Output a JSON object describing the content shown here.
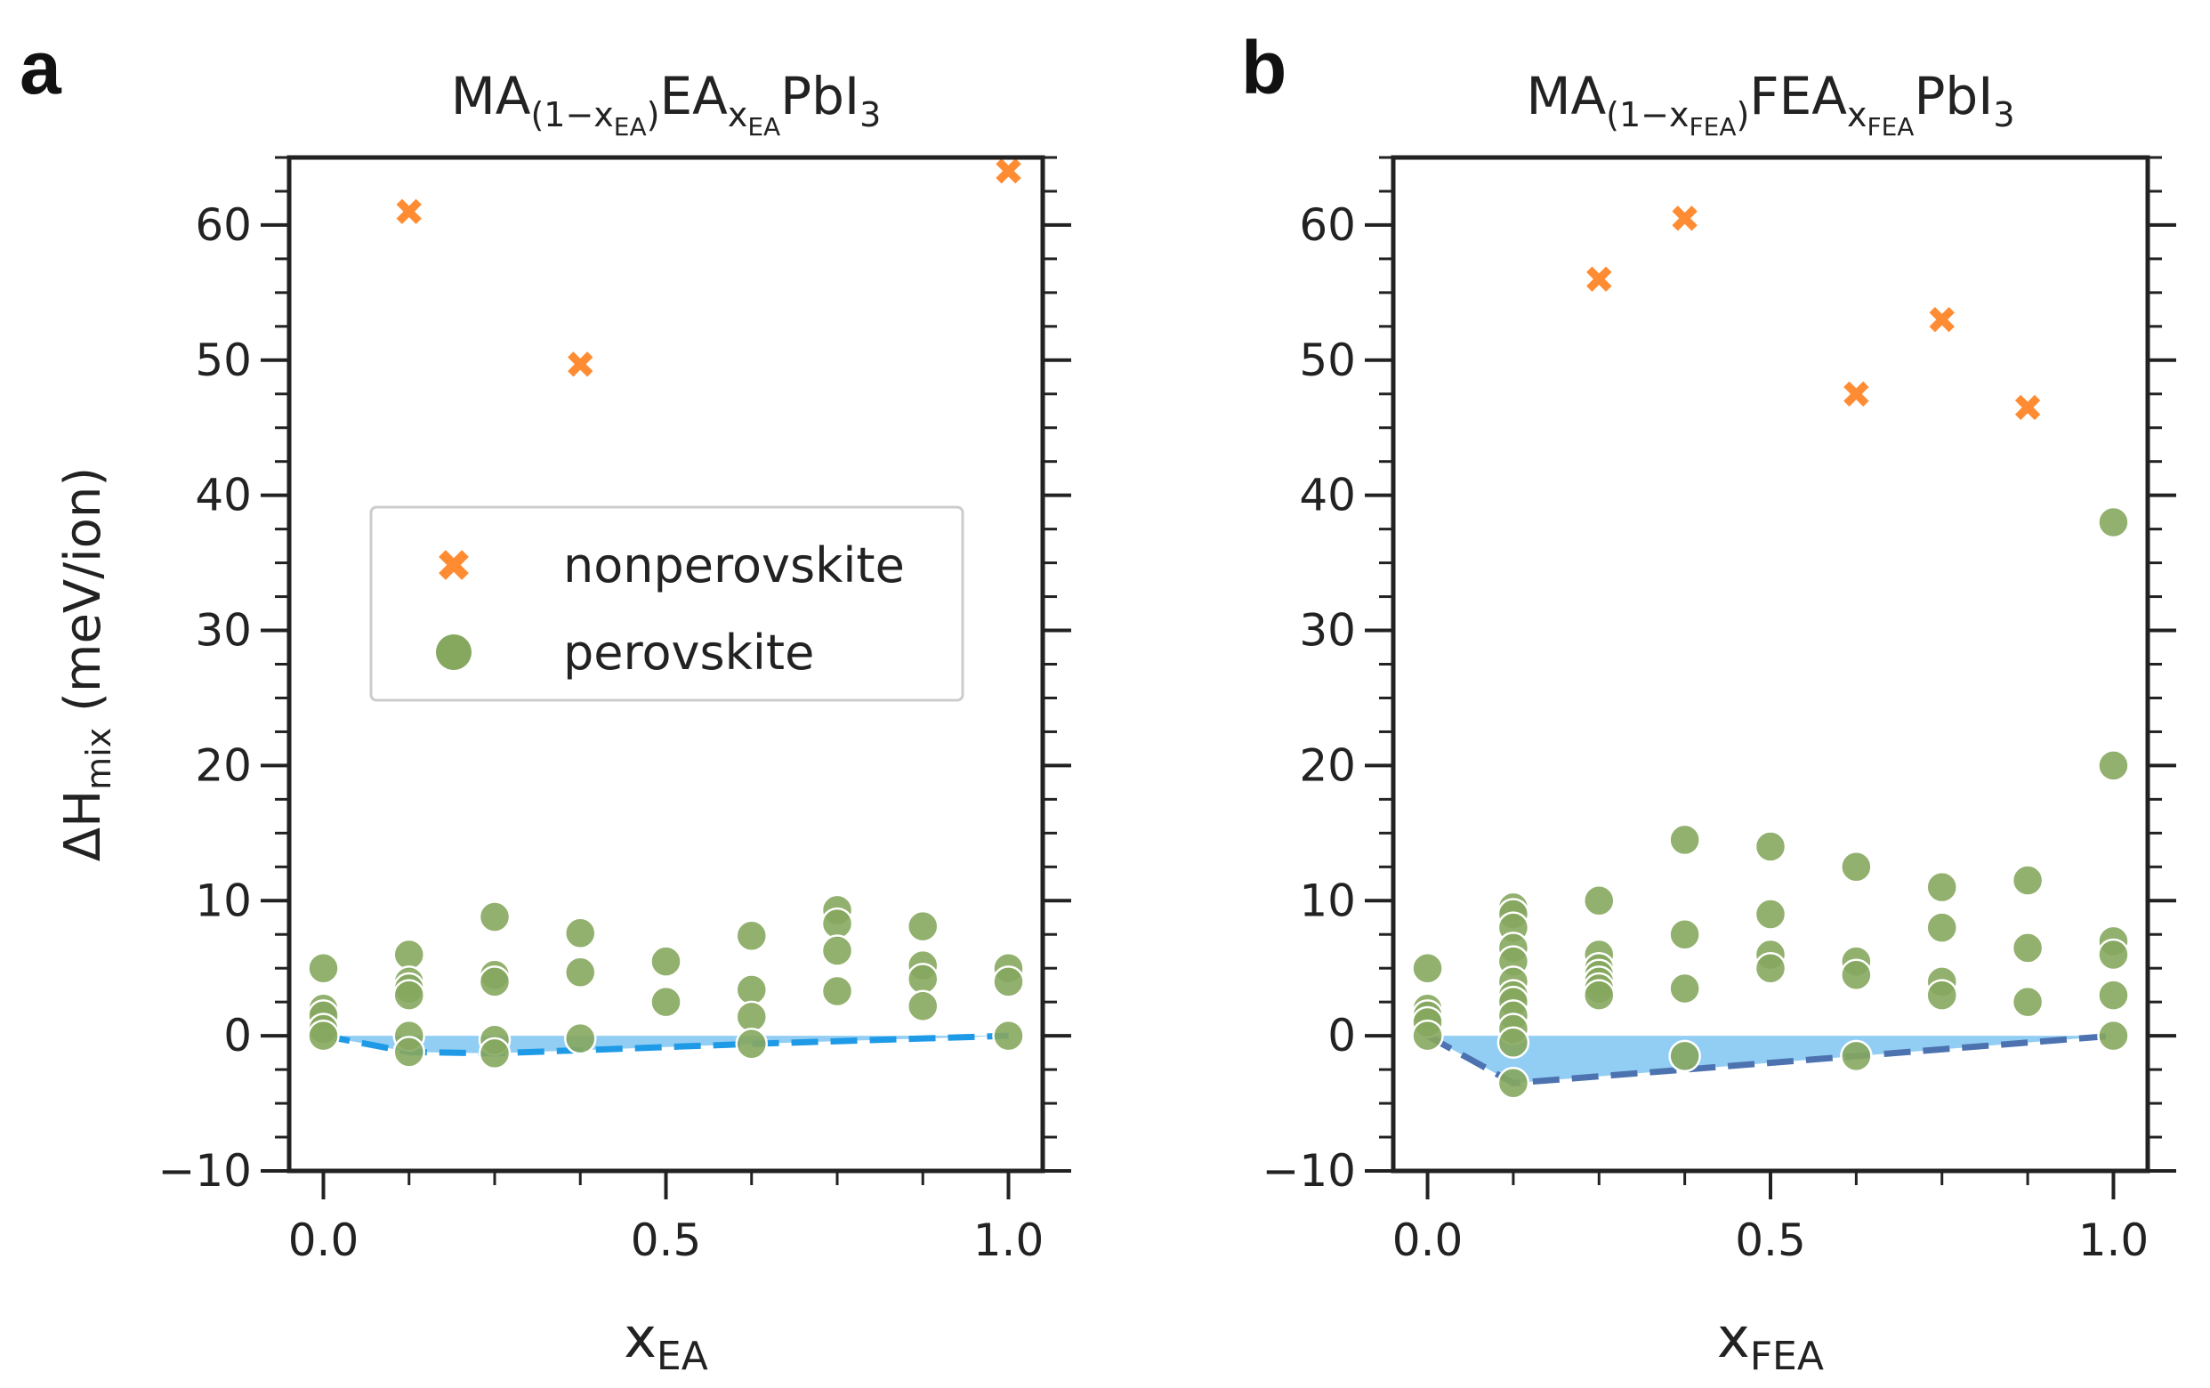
{
  "chart_data": [
    {
      "type": "scatter",
      "panel_label": "a",
      "title": {
        "main": "MA",
        "sub1": "(1−x",
        "sub1b": "EA",
        "sub1c": ")",
        "mid": "EA",
        "sub2": "x",
        "sub2b": "EA",
        "end": "PbI",
        "sub3": "3"
      },
      "xlabel": {
        "main": "x",
        "sub": "EA"
      },
      "ylabel": {
        "main": "ΔH",
        "sub": "mix",
        "unit": " (meV/ion)"
      },
      "xlim": [
        -0.05,
        1.05
      ],
      "ylim": [
        -10,
        65
      ],
      "xticks": [
        "0.0",
        "0.5",
        "1.0"
      ],
      "yticks": [
        "−10",
        "0",
        "10",
        "20",
        "30",
        "40",
        "50",
        "60"
      ],
      "legend": {
        "placement": "center",
        "entries": [
          "nonperovskite",
          "perovskite"
        ]
      },
      "colors": {
        "nonperovskite": "#FF8C33",
        "perovskite": "#86A75E",
        "hull": "#1E9AE6",
        "fill": "#8CCBF2"
      },
      "nonperovskite": [
        [
          0.125,
          61
        ],
        [
          0.375,
          49.7
        ],
        [
          1.0,
          64
        ]
      ],
      "perovskite": [
        [
          0,
          5
        ],
        [
          0,
          2
        ],
        [
          0,
          1.5
        ],
        [
          0,
          0.5
        ],
        [
          0,
          0
        ],
        [
          0.125,
          6
        ],
        [
          0.125,
          4
        ],
        [
          0.125,
          3.5
        ],
        [
          0.125,
          3
        ],
        [
          0.125,
          0
        ],
        [
          0.125,
          -1.2
        ],
        [
          0.25,
          8.8
        ],
        [
          0.25,
          4.5
        ],
        [
          0.25,
          4
        ],
        [
          0.25,
          -0.3
        ],
        [
          0.25,
          -1.3
        ],
        [
          0.375,
          7.6
        ],
        [
          0.375,
          4.7
        ],
        [
          0.375,
          -0.2
        ],
        [
          0.5,
          5.5
        ],
        [
          0.5,
          2.5
        ],
        [
          0.625,
          7.4
        ],
        [
          0.625,
          3.4
        ],
        [
          0.625,
          1.4
        ],
        [
          0.625,
          -0.6
        ],
        [
          0.75,
          9.3
        ],
        [
          0.75,
          8.3
        ],
        [
          0.75,
          6.3
        ],
        [
          0.75,
          3.3
        ],
        [
          0.875,
          8.1
        ],
        [
          0.875,
          5.2
        ],
        [
          0.875,
          4.2
        ],
        [
          0.875,
          2.2
        ],
        [
          1,
          5
        ],
        [
          1,
          4
        ],
        [
          1,
          0
        ]
      ],
      "hull": [
        [
          0,
          0
        ],
        [
          0.125,
          -1.2
        ],
        [
          0.25,
          -1.3
        ],
        [
          0.625,
          -0.6
        ],
        [
          1,
          0
        ]
      ]
    },
    {
      "type": "scatter",
      "panel_label": "b",
      "title": {
        "main": "MA",
        "sub1": "(1−x",
        "sub1b": "FEA",
        "sub1c": ")",
        "mid": "FEA",
        "sub2": "x",
        "sub2b": "FEA",
        "end": "PbI",
        "sub3": "3"
      },
      "xlabel": {
        "main": "x",
        "sub": "FEA"
      },
      "xlim": [
        -0.05,
        1.05
      ],
      "ylim": [
        -10,
        65
      ],
      "xticks": [
        "0.0",
        "0.5",
        "1.0"
      ],
      "yticks": [
        "−10",
        "0",
        "10",
        "20",
        "30",
        "40",
        "50",
        "60"
      ],
      "colors": {
        "nonperovskite": "#FF8C33",
        "perovskite": "#86A75E",
        "hull": "#4C72B0",
        "fill": "#8CCBF2"
      },
      "nonperovskite": [
        [
          0.25,
          56
        ],
        [
          0.375,
          60.5
        ],
        [
          0.625,
          47.5
        ],
        [
          0.75,
          53
        ],
        [
          0.875,
          46.5
        ]
      ],
      "perovskite": [
        [
          0,
          5
        ],
        [
          0,
          2
        ],
        [
          0,
          1.5
        ],
        [
          0,
          1
        ],
        [
          0,
          0
        ],
        [
          0.125,
          9.5
        ],
        [
          0.125,
          9
        ],
        [
          0.125,
          8
        ],
        [
          0.125,
          6.5
        ],
        [
          0.125,
          5.5
        ],
        [
          0.125,
          4
        ],
        [
          0.125,
          3
        ],
        [
          0.125,
          2.5
        ],
        [
          0.125,
          1.5
        ],
        [
          0.125,
          0.5
        ],
        [
          0.125,
          -0.5
        ],
        [
          0.125,
          -3.5
        ],
        [
          0.25,
          10
        ],
        [
          0.25,
          6
        ],
        [
          0.25,
          5
        ],
        [
          0.25,
          4.5
        ],
        [
          0.25,
          4
        ],
        [
          0.25,
          3.5
        ],
        [
          0.25,
          3
        ],
        [
          0.375,
          14.5
        ],
        [
          0.375,
          7.5
        ],
        [
          0.375,
          3.5
        ],
        [
          0.375,
          -1.5
        ],
        [
          0.5,
          14
        ],
        [
          0.5,
          9
        ],
        [
          0.5,
          6
        ],
        [
          0.5,
          5
        ],
        [
          0.625,
          12.5
        ],
        [
          0.625,
          5.5
        ],
        [
          0.625,
          4.5
        ],
        [
          0.625,
          -1.5
        ],
        [
          0.75,
          11
        ],
        [
          0.75,
          8
        ],
        [
          0.75,
          4
        ],
        [
          0.75,
          3
        ],
        [
          0.875,
          11.5
        ],
        [
          0.875,
          6.5
        ],
        [
          0.875,
          2.5
        ],
        [
          1,
          38
        ],
        [
          1,
          20
        ],
        [
          1,
          7
        ],
        [
          1,
          6
        ],
        [
          1,
          3
        ],
        [
          1,
          0
        ]
      ],
      "hull": [
        [
          0,
          0
        ],
        [
          0.125,
          -3.5
        ],
        [
          1,
          0
        ]
      ]
    }
  ]
}
